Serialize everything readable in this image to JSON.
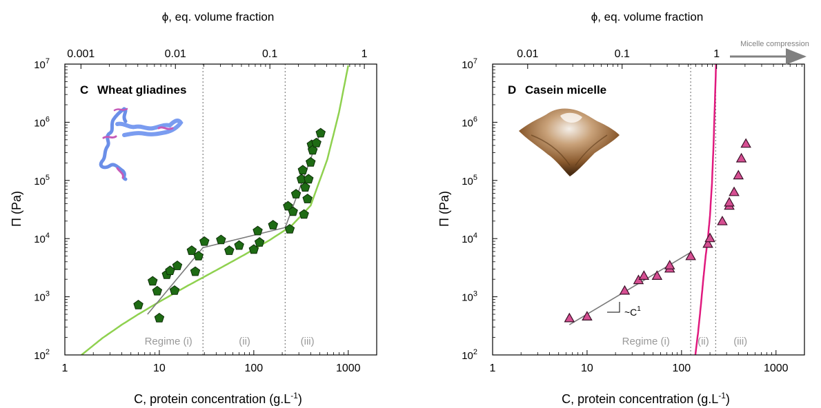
{
  "chart_data": [
    {
      "type": "scatter",
      "panel_label": "C",
      "title": "Wheat gliadines",
      "xlabel": "C, protein concentration (g.L",
      "xlabel_sup": "-1",
      "xlabel_end": ")",
      "ylabel": "Π (Pa)",
      "top_xlabel": "ϕ, eq. volume fraction",
      "x_scale": "log",
      "y_scale": "log",
      "xlim": [
        1,
        2000
      ],
      "ylim": [
        100,
        10000000
      ],
      "x_ticks": [
        "1",
        "10",
        "100",
        "1000"
      ],
      "y_ticks": [
        {
          "base": "10",
          "exp": "2"
        },
        {
          "base": "10",
          "exp": "3"
        },
        {
          "base": "10",
          "exp": "4"
        },
        {
          "base": "10",
          "exp": "5"
        },
        {
          "base": "10",
          "exp": "6"
        },
        {
          "base": "10",
          "exp": "7"
        }
      ],
      "top_ticks": [
        "0.001",
        "0.01",
        "0.1",
        "1"
      ],
      "top_tick_positions_c": [
        1.48,
        14.8,
        148,
        1480
      ],
      "regime_boundaries_c": [
        29,
        215
      ],
      "regime_labels": [
        "Regime (i)",
        "(ii)",
        "(iii)"
      ],
      "marker": "pentagon",
      "marker_color": "#1e6b14",
      "points": [
        [
          6,
          720
        ],
        [
          8.5,
          1850
        ],
        [
          9.5,
          1250
        ],
        [
          10,
          430
        ],
        [
          12,
          2400
        ],
        [
          13,
          2800
        ],
        [
          14.5,
          1280
        ],
        [
          15.5,
          3400
        ],
        [
          22,
          6200
        ],
        [
          24,
          2700
        ],
        [
          26,
          5000
        ],
        [
          30,
          8900
        ],
        [
          45,
          9500
        ],
        [
          55,
          6200
        ],
        [
          70,
          7600
        ],
        [
          100,
          6500
        ],
        [
          110,
          13500
        ],
        [
          115,
          8600
        ],
        [
          160,
          17000
        ],
        [
          230,
          36000
        ],
        [
          240,
          14500
        ],
        [
          260,
          29000
        ],
        [
          280,
          58000
        ],
        [
          320,
          105000
        ],
        [
          330,
          150000
        ],
        [
          340,
          26000
        ],
        [
          350,
          76000
        ],
        [
          370,
          48000
        ],
        [
          380,
          105000
        ],
        [
          400,
          205000
        ],
        [
          410,
          410000
        ],
        [
          420,
          330000
        ],
        [
          460,
          440000
        ],
        [
          510,
          650000
        ]
      ],
      "fit_segments": [
        [
          [
            7.5,
            500
          ],
          [
            29,
            7000
          ],
          [
            215,
            15500
          ],
          [
            500,
            630000
          ]
        ]
      ],
      "model_curve": {
        "color": "#8fd14f",
        "points": [
          [
            1.5,
            100
          ],
          [
            2.5,
            195
          ],
          [
            4,
            330
          ],
          [
            6,
            500
          ],
          [
            10,
            820
          ],
          [
            20,
            1550
          ],
          [
            40,
            2850
          ],
          [
            80,
            5300
          ],
          [
            150,
            9600
          ],
          [
            250,
            16500
          ],
          [
            400,
            37000
          ],
          [
            600,
            230000
          ],
          [
            800,
            1500000
          ],
          [
            1000,
            9500000
          ]
        ]
      }
    },
    {
      "type": "scatter",
      "panel_label": "D",
      "title": "Casein micelle",
      "xlabel": "C, protein concentration (g.L",
      "xlabel_sup": "-1",
      "xlabel_end": ")",
      "ylabel": "Π (Pa)",
      "top_xlabel": "ϕ, eq. volume fraction",
      "x_scale": "log",
      "y_scale": "log",
      "xlim": [
        1,
        2000
      ],
      "ylim": [
        100,
        10000000
      ],
      "x_ticks": [
        "1",
        "10",
        "100",
        "1000"
      ],
      "y_ticks": [
        {
          "base": "10",
          "exp": "2"
        },
        {
          "base": "10",
          "exp": "3"
        },
        {
          "base": "10",
          "exp": "4"
        },
        {
          "base": "10",
          "exp": "5"
        },
        {
          "base": "10",
          "exp": "6"
        },
        {
          "base": "10",
          "exp": "7"
        }
      ],
      "top_ticks": [
        "0.01",
        "0.1",
        "1"
      ],
      "top_tick_positions_c": [
        2.35,
        23.5,
        235
      ],
      "annotation_arrow": "Micelle compression",
      "slope_label": {
        "text": "~C",
        "sup": "1"
      },
      "regime_boundaries_c": [
        125,
        230
      ],
      "regime_labels": [
        "Regime (i)",
        "(ii)",
        "(iii)"
      ],
      "marker": "triangle",
      "marker_color": "#d64f92",
      "points": [
        [
          6.5,
          420
        ],
        [
          10,
          450
        ],
        [
          25,
          1250
        ],
        [
          35,
          1900
        ],
        [
          40,
          2250
        ],
        [
          55,
          2250
        ],
        [
          75,
          3000
        ],
        [
          75,
          3400
        ],
        [
          125,
          4900
        ],
        [
          190,
          8000
        ],
        [
          200,
          10000
        ],
        [
          270,
          19500
        ],
        [
          320,
          36000
        ],
        [
          320,
          41000
        ],
        [
          360,
          62000
        ],
        [
          400,
          120000
        ],
        [
          430,
          235000
        ],
        [
          480,
          420000
        ]
      ],
      "fit_segments": [
        [
          [
            6.5,
            330
          ],
          [
            125,
            5800
          ]
        ]
      ],
      "model_curve": {
        "color": "#e0197e",
        "points": [
          [
            140,
            100
          ],
          [
            150,
            250
          ],
          [
            160,
            700
          ],
          [
            170,
            2000
          ],
          [
            180,
            5000
          ],
          [
            190,
            10000
          ],
          [
            200,
            25000
          ],
          [
            210,
            90000
          ],
          [
            218,
            400000
          ],
          [
            225,
            2000000
          ],
          [
            232,
            10000000
          ]
        ]
      }
    }
  ]
}
